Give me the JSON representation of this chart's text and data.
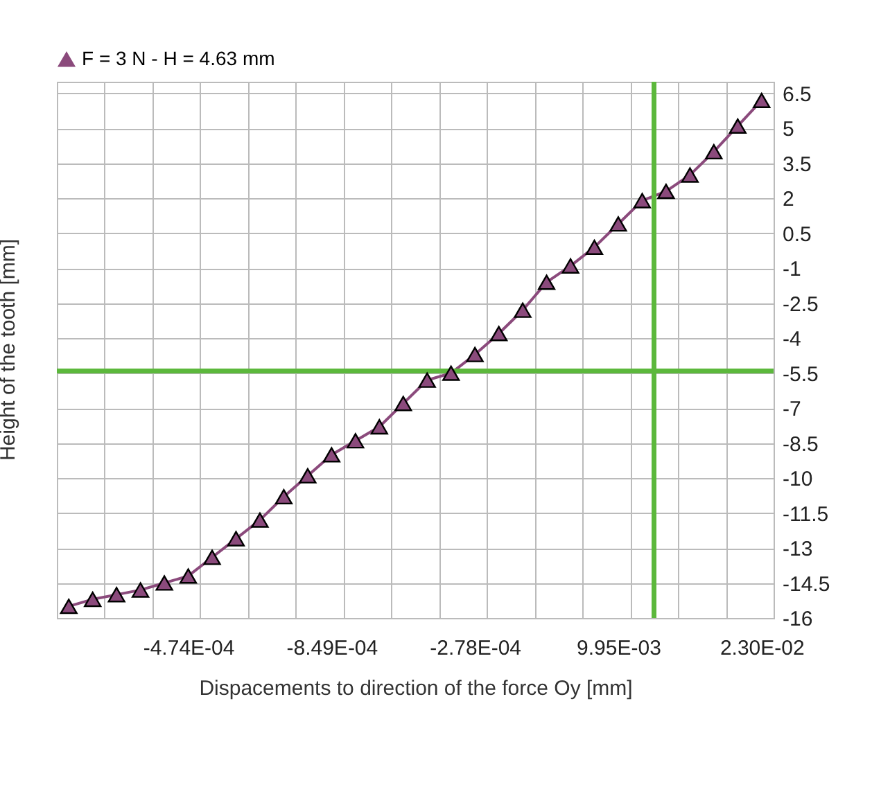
{
  "chart_data": {
    "type": "line",
    "categories": [
      null,
      null,
      null,
      null,
      null,
      "-4.74E-04",
      null,
      null,
      null,
      null,
      null,
      "-8.49E-04",
      null,
      null,
      null,
      null,
      null,
      "-2.78E-04",
      null,
      null,
      null,
      null,
      null,
      "9.95E-03",
      null,
      null,
      null,
      null,
      null,
      "2.30E-02"
    ],
    "series": [
      {
        "name": "F = 3 N - H = 4.63 mm",
        "color": "#8b4a7c",
        "values": [
          -15.5,
          -15.2,
          -15.0,
          -14.8,
          -14.5,
          -14.2,
          -13.4,
          -12.6,
          -11.8,
          -10.8,
          -9.9,
          -9.0,
          -8.4,
          -7.8,
          -6.8,
          -5.8,
          -5.5,
          -4.7,
          -3.8,
          -2.8,
          -1.6,
          -0.9,
          -0.1,
          0.9,
          1.9,
          2.3,
          3.0,
          4.0,
          5.1,
          6.2
        ]
      }
    ],
    "xlabel": "Dispacements to direction of the force Oy [mm]",
    "ylabel": "Height of the tooth [mm]",
    "ylim": [
      -16,
      7
    ],
    "yticks": [
      -16,
      -14.5,
      -13,
      -11.5,
      -10,
      -8.5,
      -7,
      -5.5,
      -4,
      -2.5,
      -1,
      0.5,
      2,
      3.5,
      5,
      6.5
    ],
    "ref_lines": [
      {
        "axis": "y",
        "value": -5.4,
        "color": "#5cb83c"
      }
    ],
    "grid": true,
    "legend": "top",
    "marker": "triangle",
    "line_style": "solid"
  }
}
